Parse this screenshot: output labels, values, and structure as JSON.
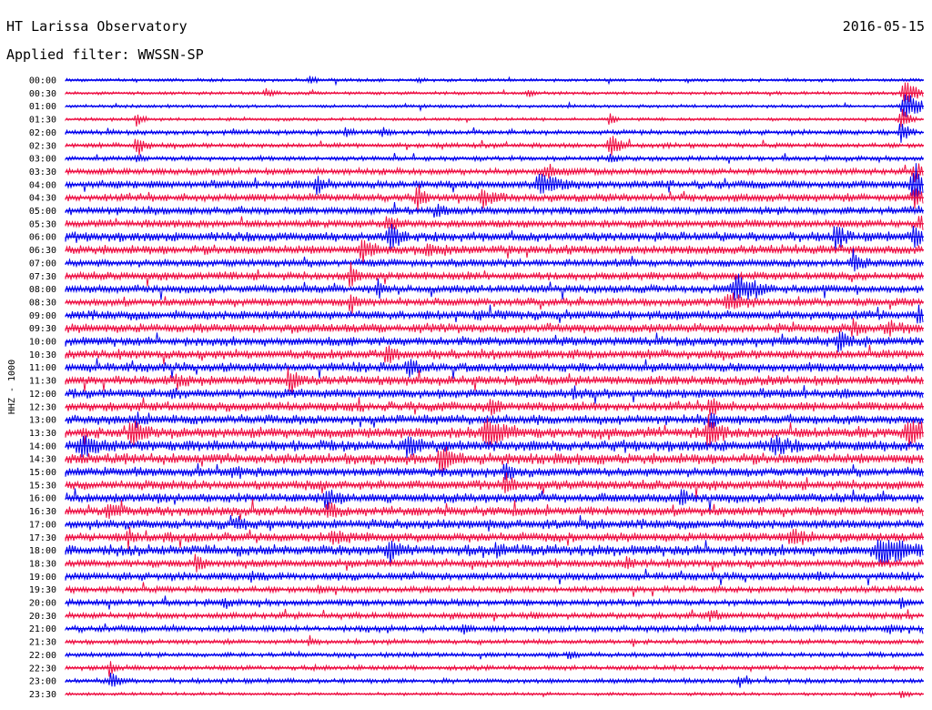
{
  "header": {
    "title": "HT Larissa Observatory",
    "date": "2016-05-15",
    "filter": "Applied filter: WWSSN-SP"
  },
  "chart_data": {
    "type": "line",
    "ylabel": "HHZ - 1000",
    "colors": [
      "#0000ee",
      "#ee1044"
    ],
    "rows": [
      {
        "time": "00:00",
        "color": "#0000ee",
        "noise": 2,
        "events": [
          [
            340,
            4,
            6
          ],
          [
            460,
            3,
            5
          ]
        ]
      },
      {
        "time": "00:30",
        "color": "#ee1044",
        "noise": 2,
        "events": [
          [
            292,
            5,
            8
          ],
          [
            580,
            4,
            6
          ],
          [
            995,
            12,
            16
          ]
        ]
      },
      {
        "time": "01:00",
        "color": "#0000ee",
        "noise": 2,
        "events": [
          [
            995,
            18,
            14
          ]
        ]
      },
      {
        "time": "01:30",
        "color": "#ee1044",
        "noise": 2,
        "events": [
          [
            150,
            8,
            5
          ],
          [
            670,
            8,
            5
          ],
          [
            990,
            12,
            8
          ]
        ]
      },
      {
        "time": "02:00",
        "color": "#0000ee",
        "noise": 3,
        "events": [
          [
            380,
            5,
            6
          ],
          [
            420,
            5,
            6
          ],
          [
            990,
            12,
            8
          ]
        ]
      },
      {
        "time": "02:30",
        "color": "#ee1044",
        "noise": 3,
        "events": [
          [
            150,
            12,
            8
          ],
          [
            670,
            14,
            10
          ]
        ]
      },
      {
        "time": "03:00",
        "color": "#0000ee",
        "noise": 3,
        "events": [
          [
            150,
            5,
            6
          ],
          [
            670,
            5,
            6
          ]
        ]
      },
      {
        "time": "03:30",
        "color": "#ee1044",
        "noise": 4,
        "events": [
          [
            600,
            6,
            20
          ],
          [
            1005,
            8,
            12
          ]
        ]
      },
      {
        "time": "04:00",
        "color": "#0000ee",
        "noise": 5,
        "events": [
          [
            348,
            12,
            8
          ],
          [
            595,
            10,
            20
          ],
          [
            1005,
            22,
            14
          ]
        ]
      },
      {
        "time": "04:30",
        "color": "#ee1044",
        "noise": 5,
        "events": [
          [
            458,
            16,
            6
          ],
          [
            530,
            8,
            12
          ],
          [
            1005,
            10,
            10
          ]
        ]
      },
      {
        "time": "05:00",
        "color": "#0000ee",
        "noise": 5,
        "events": [
          [
            480,
            6,
            10
          ]
        ]
      },
      {
        "time": "05:30",
        "color": "#ee1044",
        "noise": 5,
        "events": [
          [
            425,
            6,
            10
          ],
          [
            1010,
            8,
            8
          ]
        ]
      },
      {
        "time": "06:00",
        "color": "#0000ee",
        "noise": 6,
        "events": [
          [
            428,
            14,
            10
          ],
          [
            918,
            14,
            8
          ],
          [
            1005,
            12,
            8
          ]
        ]
      },
      {
        "time": "06:30",
        "color": "#ee1044",
        "noise": 6,
        "events": [
          [
            398,
            14,
            8
          ],
          [
            470,
            6,
            10
          ]
        ]
      },
      {
        "time": "07:00",
        "color": "#0000ee",
        "noise": 5,
        "events": [
          [
            938,
            10,
            8
          ]
        ]
      },
      {
        "time": "07:30",
        "color": "#ee1044",
        "noise": 5,
        "events": [
          [
            385,
            14,
            6
          ]
        ]
      },
      {
        "time": "08:00",
        "color": "#0000ee",
        "noise": 5,
        "events": [
          [
            810,
            16,
            18
          ],
          [
            415,
            10,
            6
          ]
        ]
      },
      {
        "time": "08:30",
        "color": "#ee1044",
        "noise": 5,
        "events": [
          [
            385,
            12,
            6
          ],
          [
            800,
            10,
            14
          ]
        ]
      },
      {
        "time": "09:00",
        "color": "#0000ee",
        "noise": 6,
        "events": [
          [
            1010,
            10,
            8
          ]
        ]
      },
      {
        "time": "09:30",
        "color": "#ee1044",
        "noise": 6,
        "events": [
          [
            975,
            6,
            12
          ],
          [
            937,
            8,
            6
          ]
        ]
      },
      {
        "time": "10:00",
        "color": "#0000ee",
        "noise": 6,
        "events": [
          [
            922,
            12,
            8
          ]
        ]
      },
      {
        "time": "10:30",
        "color": "#ee1044",
        "noise": 6,
        "events": [
          [
            425,
            12,
            6
          ]
        ]
      },
      {
        "time": "11:00",
        "color": "#0000ee",
        "noise": 6,
        "events": [
          [
            448,
            10,
            8
          ]
        ]
      },
      {
        "time": "11:30",
        "color": "#ee1044",
        "noise": 6,
        "events": [
          [
            318,
            14,
            8
          ],
          [
            195,
            6,
            10
          ]
        ]
      },
      {
        "time": "12:00",
        "color": "#0000ee",
        "noise": 6,
        "events": [
          [
            188,
            6,
            6
          ],
          [
            630,
            5,
            8
          ]
        ]
      },
      {
        "time": "12:30",
        "color": "#ee1044",
        "noise": 6,
        "events": [
          [
            540,
            10,
            8
          ],
          [
            780,
            12,
            8
          ]
        ]
      },
      {
        "time": "13:00",
        "color": "#0000ee",
        "noise": 6,
        "events": [
          [
            150,
            6,
            6
          ],
          [
            780,
            8,
            6
          ]
        ]
      },
      {
        "time": "13:30",
        "color": "#ee1044",
        "noise": 7,
        "events": [
          [
            145,
            16,
            10
          ],
          [
            535,
            14,
            20
          ],
          [
            778,
            16,
            10
          ],
          [
            1000,
            14,
            20
          ]
        ]
      },
      {
        "time": "14:00",
        "color": "#0000ee",
        "noise": 7,
        "events": [
          [
            448,
            14,
            8
          ],
          [
            850,
            8,
            14
          ],
          [
            90,
            8,
            20
          ]
        ]
      },
      {
        "time": "14:30",
        "color": "#ee1044",
        "noise": 7,
        "events": [
          [
            485,
            12,
            14
          ]
        ]
      },
      {
        "time": "15:00",
        "color": "#0000ee",
        "noise": 6,
        "events": [
          [
            255,
            6,
            8
          ],
          [
            555,
            10,
            6
          ]
        ]
      },
      {
        "time": "15:30",
        "color": "#ee1044",
        "noise": 6,
        "events": [
          [
            555,
            12,
            8
          ]
        ]
      },
      {
        "time": "16:00",
        "color": "#0000ee",
        "noise": 6,
        "events": [
          [
            358,
            12,
            8
          ],
          [
            748,
            8,
            6
          ]
        ]
      },
      {
        "time": "16:30",
        "color": "#ee1044",
        "noise": 6,
        "events": [
          [
            118,
            8,
            12
          ],
          [
            360,
            8,
            8
          ]
        ]
      },
      {
        "time": "17:00",
        "color": "#0000ee",
        "noise": 6,
        "events": [
          [
            260,
            6,
            8
          ]
        ]
      },
      {
        "time": "17:30",
        "color": "#ee1044",
        "noise": 6,
        "events": [
          [
            140,
            10,
            6
          ],
          [
            365,
            8,
            12
          ],
          [
            870,
            8,
            14
          ]
        ]
      },
      {
        "time": "18:00",
        "color": "#0000ee",
        "noise": 7,
        "events": [
          [
            428,
            12,
            8
          ],
          [
            545,
            8,
            6
          ],
          [
            970,
            12,
            30
          ]
        ]
      },
      {
        "time": "18:30",
        "color": "#ee1044",
        "noise": 5,
        "events": [
          [
            215,
            12,
            6
          ],
          [
            688,
            6,
            6
          ]
        ]
      },
      {
        "time": "19:00",
        "color": "#0000ee",
        "noise": 5,
        "events": [
          [
            275,
            5,
            6
          ],
          [
            900,
            5,
            6
          ]
        ]
      },
      {
        "time": "19:30",
        "color": "#ee1044",
        "noise": 4,
        "events": [
          [
            350,
            5,
            6
          ]
        ]
      },
      {
        "time": "20:00",
        "color": "#0000ee",
        "noise": 4,
        "events": [
          [
            245,
            6,
            6
          ],
          [
            990,
            6,
            6
          ]
        ]
      },
      {
        "time": "20:30",
        "color": "#ee1044",
        "noise": 4,
        "events": [
          [
            780,
            5,
            10
          ]
        ]
      },
      {
        "time": "21:00",
        "color": "#0000ee",
        "noise": 4,
        "events": [
          [
            508,
            6,
            6
          ],
          [
            975,
            5,
            8
          ]
        ]
      },
      {
        "time": "21:30",
        "color": "#ee1044",
        "noise": 3,
        "events": [
          [
            340,
            5,
            6
          ]
        ]
      },
      {
        "time": "22:00",
        "color": "#0000ee",
        "noise": 3,
        "events": [
          [
            625,
            5,
            6
          ]
        ]
      },
      {
        "time": "22:30",
        "color": "#ee1044",
        "noise": 3,
        "events": [
          [
            120,
            8,
            5
          ]
        ]
      },
      {
        "time": "23:00",
        "color": "#0000ee",
        "noise": 3,
        "events": [
          [
            122,
            10,
            8
          ],
          [
            812,
            6,
            6
          ]
        ]
      },
      {
        "time": "23:30",
        "color": "#ee1044",
        "noise": 2,
        "events": [
          [
            990,
            5,
            6
          ]
        ]
      }
    ]
  }
}
